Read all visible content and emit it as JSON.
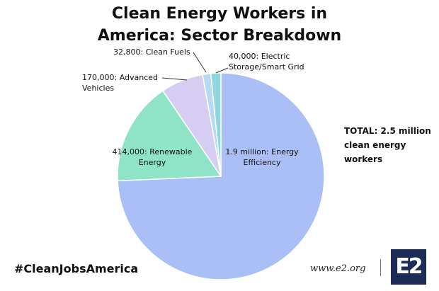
{
  "chart_data": {
    "type": "pie",
    "title": "Clean Energy Workers in America: Sector Breakdown",
    "categories": [
      "Energy Efficiency",
      "Renewable Energy",
      "Advanced Vehicles",
      "Clean Fuels",
      "Electric Storage/Smart Grid"
    ],
    "values": [
      1900000,
      414000,
      170000,
      32800,
      40000
    ],
    "value_labels": [
      "1.9 million:",
      "414,000:",
      "170,000:",
      "32,800:",
      "40,000:"
    ],
    "colors": [
      "#a9bff5",
      "#8fe3c7",
      "#d6cdf3",
      "#b6daf2",
      "#8fd6e0"
    ],
    "annotation": "TOTAL: 2.5 million clean energy workers"
  },
  "footer": {
    "hashtag": "#CleanJobsAmerica",
    "url": "www.e2.org",
    "logo": "E2"
  }
}
